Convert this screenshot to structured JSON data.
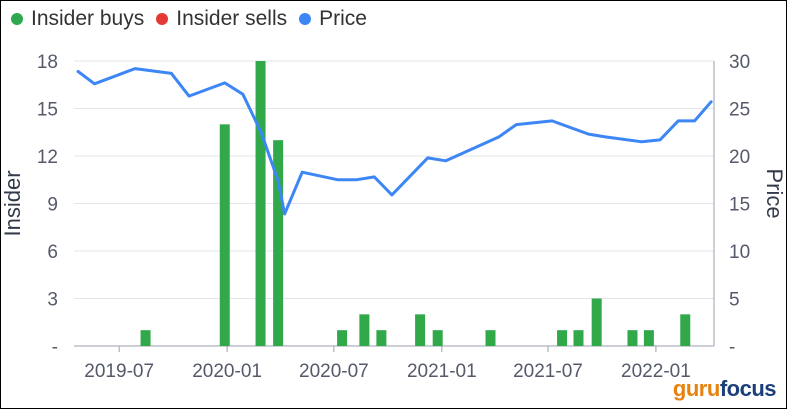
{
  "legend": {
    "items": [
      {
        "label": "Insider buys",
        "color": "#2ea84f"
      },
      {
        "label": "Insider sells",
        "color": "#e53935"
      },
      {
        "label": "Price",
        "color": "#3d86f5"
      }
    ]
  },
  "brand": {
    "part1": "guru",
    "part2": "focus"
  },
  "chart_data": {
    "type": "bar+line",
    "y_left": {
      "label": "Insider",
      "range": [
        0,
        18
      ],
      "ticks": [
        "-",
        "3",
        "6",
        "9",
        "12",
        "15",
        "18"
      ]
    },
    "y_right": {
      "label": "Price",
      "range": [
        0,
        30
      ],
      "ticks": [
        "-",
        "5",
        "10",
        "15",
        "20",
        "25",
        "30"
      ]
    },
    "x_axis": {
      "range": [
        "2019-04-15",
        "2022-04-10"
      ],
      "ticks": [
        {
          "date": "2019-07-01",
          "label": "2019-07"
        },
        {
          "date": "2020-01-01",
          "label": "2020-01"
        },
        {
          "date": "2020-07-01",
          "label": "2020-07"
        },
        {
          "date": "2021-01-01",
          "label": "2021-01"
        },
        {
          "date": "2021-07-01",
          "label": "2021-07"
        },
        {
          "date": "2022-01-01",
          "label": "2022-01"
        }
      ]
    },
    "grid": true,
    "insider_buys": [
      {
        "date": "2019-08-15",
        "value": 1
      },
      {
        "date": "2019-12-28",
        "value": 14
      },
      {
        "date": "2020-02-27",
        "value": 18
      },
      {
        "date": "2020-03-28",
        "value": 13
      },
      {
        "date": "2020-07-15",
        "value": 1
      },
      {
        "date": "2020-08-22",
        "value": 2
      },
      {
        "date": "2020-09-20",
        "value": 1
      },
      {
        "date": "2020-11-25",
        "value": 2
      },
      {
        "date": "2020-12-25",
        "value": 1
      },
      {
        "date": "2021-03-25",
        "value": 1
      },
      {
        "date": "2021-07-25",
        "value": 1
      },
      {
        "date": "2021-08-22",
        "value": 1
      },
      {
        "date": "2021-09-22",
        "value": 3
      },
      {
        "date": "2021-11-22",
        "value": 1
      },
      {
        "date": "2021-12-20",
        "value": 1
      },
      {
        "date": "2022-02-20",
        "value": 2
      }
    ],
    "insider_sells": [],
    "price": [
      {
        "date": "2019-04-22",
        "value": 28.9
      },
      {
        "date": "2019-05-20",
        "value": 27.6
      },
      {
        "date": "2019-07-28",
        "value": 29.2
      },
      {
        "date": "2019-09-28",
        "value": 28.7
      },
      {
        "date": "2019-10-28",
        "value": 26.3
      },
      {
        "date": "2019-12-28",
        "value": 27.7
      },
      {
        "date": "2020-01-28",
        "value": 26.5
      },
      {
        "date": "2020-02-28",
        "value": 22.5
      },
      {
        "date": "2020-03-28",
        "value": 17.4
      },
      {
        "date": "2020-04-08",
        "value": 13.9
      },
      {
        "date": "2020-05-08",
        "value": 18.3
      },
      {
        "date": "2020-07-08",
        "value": 17.5
      },
      {
        "date": "2020-08-08",
        "value": 17.5
      },
      {
        "date": "2020-09-08",
        "value": 17.8
      },
      {
        "date": "2020-10-08",
        "value": 15.9
      },
      {
        "date": "2020-12-08",
        "value": 19.8
      },
      {
        "date": "2021-01-08",
        "value": 19.5
      },
      {
        "date": "2021-04-08",
        "value": 22.0
      },
      {
        "date": "2021-05-08",
        "value": 23.3
      },
      {
        "date": "2021-07-08",
        "value": 23.7
      },
      {
        "date": "2021-09-08",
        "value": 22.3
      },
      {
        "date": "2021-10-08",
        "value": 22.0
      },
      {
        "date": "2021-12-08",
        "value": 21.5
      },
      {
        "date": "2022-01-08",
        "value": 21.7
      },
      {
        "date": "2022-02-08",
        "value": 23.7
      },
      {
        "date": "2022-03-08",
        "value": 23.7
      },
      {
        "date": "2022-04-05",
        "value": 25.7
      }
    ]
  }
}
